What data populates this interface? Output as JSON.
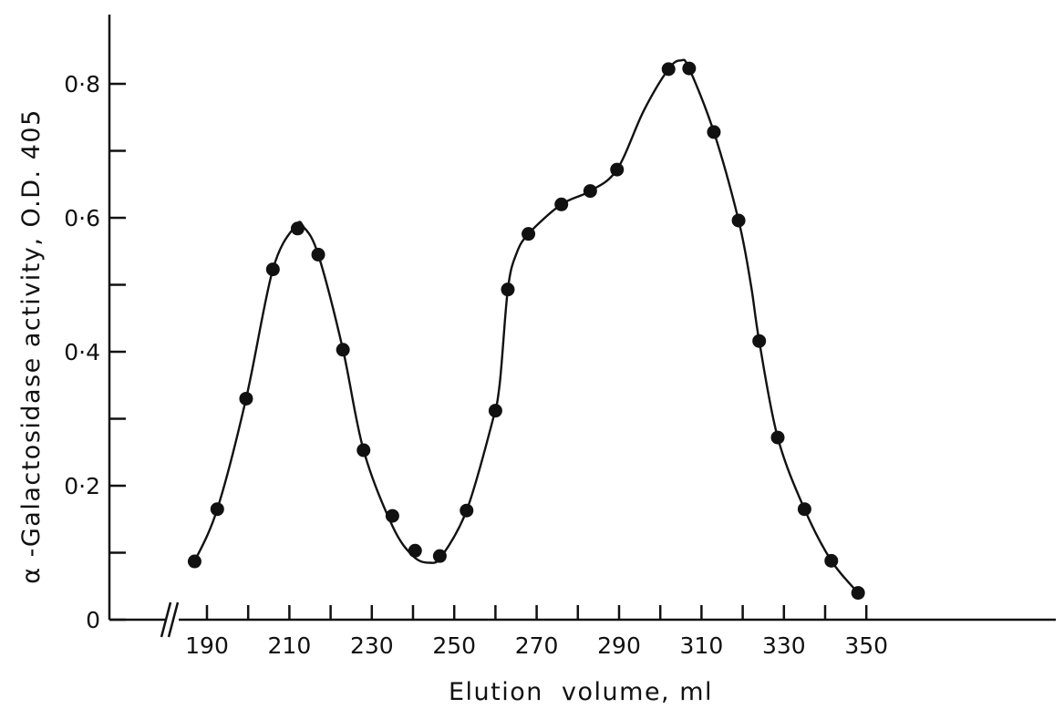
{
  "chart_data": {
    "type": "line",
    "title": "",
    "xlabel": "Elution  volume, ml",
    "ylabel": "α -Galactosidase activity, O.D. 405",
    "xlim": [
      182,
      355
    ],
    "ylim": [
      0,
      0.89
    ],
    "x_axis_break": true,
    "x_ticks": [
      190,
      200,
      210,
      220,
      230,
      240,
      250,
      260,
      270,
      280,
      290,
      300,
      310,
      320,
      330,
      340,
      350
    ],
    "x_tick_labels": [
      {
        "value": 190,
        "label": "190"
      },
      {
        "value": 210,
        "label": "210"
      },
      {
        "value": 230,
        "label": "230"
      },
      {
        "value": 250,
        "label": "250"
      },
      {
        "value": 270,
        "label": "270"
      },
      {
        "value": 290,
        "label": "290"
      },
      {
        "value": 310,
        "label": "310"
      },
      {
        "value": 330,
        "label": "330"
      },
      {
        "value": 350,
        "label": "350"
      }
    ],
    "y_ticks": [
      0,
      0.1,
      0.2,
      0.3,
      0.4,
      0.5,
      0.6,
      0.7,
      0.8
    ],
    "y_tick_labels": [
      {
        "value": 0,
        "label": "0"
      },
      {
        "value": 0.2,
        "label": "0·2"
      },
      {
        "value": 0.4,
        "label": "0·4"
      },
      {
        "value": 0.6,
        "label": "0·6"
      },
      {
        "value": 0.8,
        "label": "0·8"
      }
    ],
    "grid": false,
    "series": [
      {
        "marker": "filled-circle",
        "color": "#111111",
        "points": [
          [
            187,
            0.087
          ],
          [
            192.5,
            0.165
          ],
          [
            199.5,
            0.33
          ],
          [
            206,
            0.523
          ],
          [
            212,
            0.584
          ],
          [
            217,
            0.545
          ],
          [
            223,
            0.403
          ],
          [
            228,
            0.253
          ],
          [
            235,
            0.155
          ],
          [
            240.5,
            0.103
          ],
          [
            246.5,
            0.095
          ],
          [
            253,
            0.163
          ],
          [
            260,
            0.312
          ],
          [
            263,
            0.493
          ],
          [
            268,
            0.576
          ],
          [
            276,
            0.62
          ],
          [
            283,
            0.64
          ],
          [
            289.5,
            0.672
          ],
          [
            302,
            0.822
          ],
          [
            307,
            0.823
          ],
          [
            313,
            0.728
          ],
          [
            319,
            0.596
          ],
          [
            324,
            0.416
          ],
          [
            328.5,
            0.272
          ],
          [
            335,
            0.165
          ],
          [
            341.5,
            0.088
          ],
          [
            348,
            0.04
          ]
        ]
      }
    ],
    "fit_curve": {
      "color": "#111111",
      "points": [
        [
          187,
          0.087
        ],
        [
          192.5,
          0.165
        ],
        [
          199.5,
          0.33
        ],
        [
          206,
          0.523
        ],
        [
          211.5,
          0.588
        ],
        [
          213.5,
          0.586
        ],
        [
          217,
          0.545
        ],
        [
          223,
          0.403
        ],
        [
          228,
          0.253
        ],
        [
          235,
          0.14
        ],
        [
          240,
          0.095
        ],
        [
          244,
          0.085
        ],
        [
          247,
          0.095
        ],
        [
          253,
          0.163
        ],
        [
          259,
          0.29
        ],
        [
          261,
          0.35
        ],
        [
          263,
          0.493
        ],
        [
          265,
          0.545
        ],
        [
          268,
          0.576
        ],
        [
          276,
          0.62
        ],
        [
          283,
          0.64
        ],
        [
          289.5,
          0.672
        ],
        [
          296,
          0.76
        ],
        [
          302,
          0.822
        ],
        [
          305,
          0.835
        ],
        [
          307,
          0.823
        ],
        [
          313,
          0.728
        ],
        [
          319,
          0.596
        ],
        [
          322,
          0.5
        ],
        [
          324,
          0.416
        ],
        [
          328.5,
          0.272
        ],
        [
          335,
          0.165
        ],
        [
          341.5,
          0.088
        ],
        [
          348,
          0.04
        ]
      ]
    }
  }
}
